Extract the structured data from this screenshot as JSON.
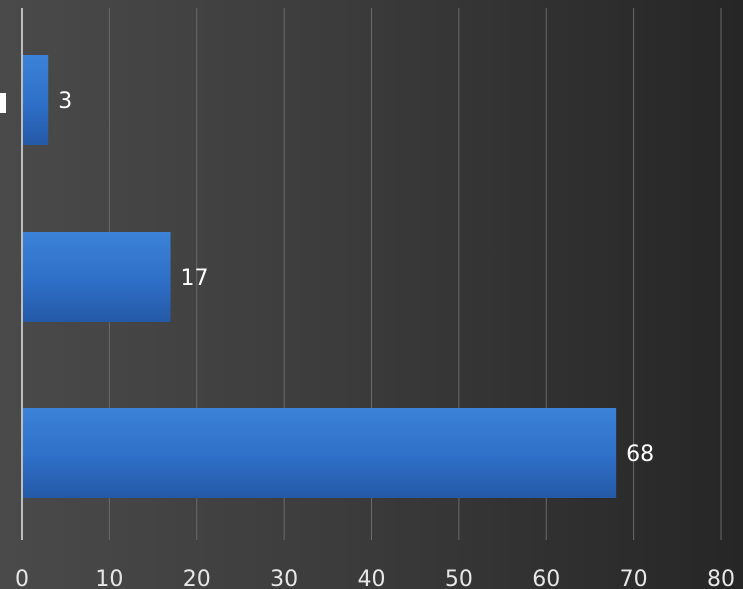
{
  "chart_data": {
    "type": "bar",
    "orientation": "horizontal",
    "categories": [
      "",
      "",
      ""
    ],
    "values": [
      3,
      17,
      68
    ],
    "xlim": [
      0,
      80
    ],
    "xticks": [
      "0",
      "10",
      "20",
      "30",
      "40",
      "50",
      "60",
      "70",
      "80"
    ],
    "grid": true,
    "legend": "none",
    "bar_color": "#2f6fc8",
    "background": "#3a3a3a"
  }
}
